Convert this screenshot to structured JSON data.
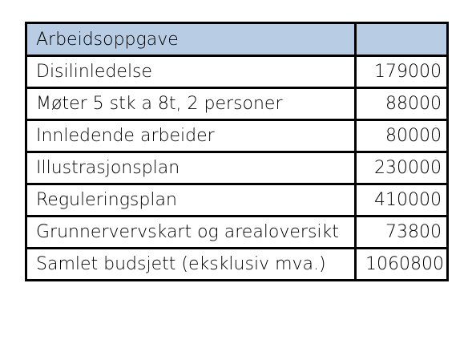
{
  "table": {
    "header": {
      "description": "Arbeidsoppgave",
      "amount": ""
    },
    "rows": [
      {
        "description": "Disilinledelse",
        "amount": "179000"
      },
      {
        "description": "Møter 5 stk a 8t, 2 personer",
        "amount": "88000"
      },
      {
        "description": "Innledende arbeider",
        "amount": "80000"
      },
      {
        "description": "Illustrasjonsplan",
        "amount": "230000"
      },
      {
        "description": "Reguleringsplan",
        "amount": "410000"
      },
      {
        "description": "Grunnervervskart og arealoversikt",
        "amount": "73800"
      },
      {
        "description": "Samlet budsjett  (eksklusiv mva.)",
        "amount": "1060800"
      }
    ]
  },
  "colors": {
    "header_background": "#b8cce4",
    "border": "#000000",
    "text": "#000000"
  }
}
